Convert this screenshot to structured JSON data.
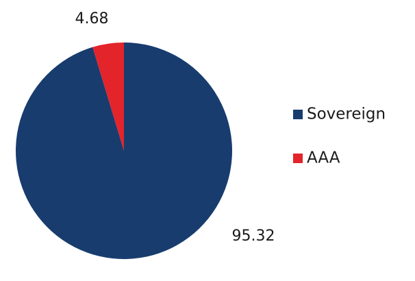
{
  "chart_data": {
    "type": "pie",
    "categories": [
      "Sovereign",
      "AAA"
    ],
    "values": [
      95.32,
      4.68
    ],
    "colors": [
      "#183c6e",
      "#e3242b"
    ],
    "legend": "right"
  }
}
